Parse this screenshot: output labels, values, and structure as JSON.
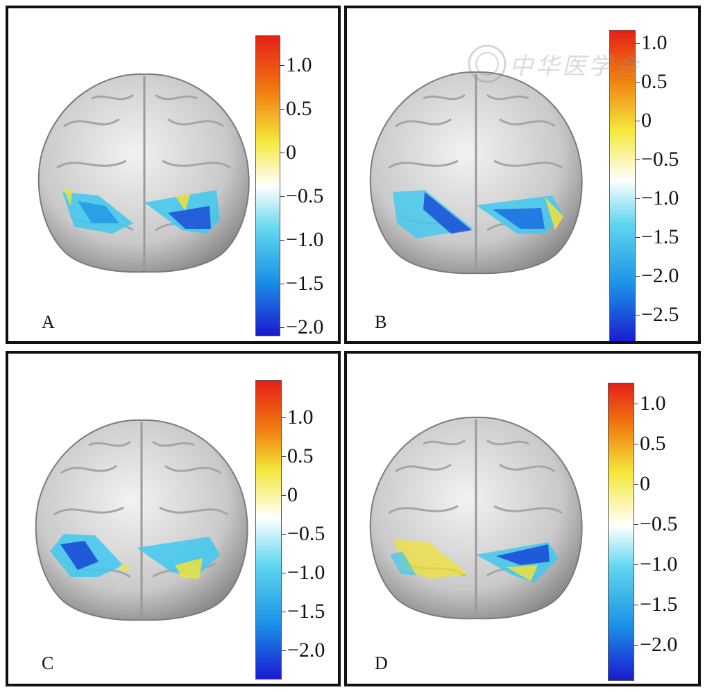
{
  "panels": [
    {
      "label": "A",
      "ticks": [
        "1.0",
        "0.5",
        "0",
        "−0.5",
        "−1.0",
        "−1.5",
        "−2.0"
      ]
    },
    {
      "label": "B",
      "ticks": [
        "1.0",
        "0.5",
        "0",
        "−0.5",
        "−1.0",
        "−1.5",
        "−2.0",
        "−2.5"
      ]
    },
    {
      "label": "C",
      "ticks": [
        "1.0",
        "0.5",
        "0",
        "−0.5",
        "−1.0",
        "−1.5",
        "−2.0"
      ]
    },
    {
      "label": "D",
      "ticks": [
        "1.0",
        "0.5",
        "0",
        "−0.5",
        "−1.0",
        "−1.5",
        "−2.0"
      ]
    }
  ],
  "watermark": {
    "text": "中华医学会"
  },
  "colors": {
    "frame": "#111111",
    "brain": "#c9c9c9",
    "activation_blue": "#1a4fd6",
    "activation_cyan": "#3fc8ef",
    "activation_yellow": "#f2e23a"
  }
}
